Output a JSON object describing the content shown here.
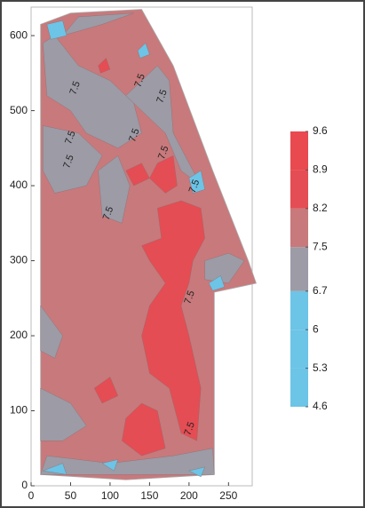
{
  "chart_data": {
    "type": "contour",
    "xlim": [
      0,
      280
    ],
    "ylim": [
      0,
      638
    ],
    "xticks": [
      0,
      50,
      100,
      150,
      200,
      250
    ],
    "yticks": [
      0,
      100,
      200,
      300,
      400,
      500,
      600
    ],
    "levels": [
      4.6,
      5.3,
      6.0,
      6.7,
      7.5,
      8.2,
      8.9,
      9.6
    ],
    "colors": [
      "#6cc4e6",
      "#6cc4e6",
      "#6cc4e6",
      "#9c9ba6",
      "#c8797c",
      "#e44d53",
      "#e84a50"
    ],
    "base_level": 7.5,
    "domain": {
      "x": [
        12,
        12,
        50,
        140,
        180,
        230,
        275,
        285,
        232,
        232,
        120
      ],
      "y": [
        15,
        615,
        630,
        635,
        560,
        420,
        300,
        270,
        258,
        15,
        8
      ]
    },
    "regions": [
      {
        "value": 6.7,
        "x": [
          30,
          60,
          100,
          130,
          140,
          110,
          70,
          50,
          20,
          15
        ],
        "y": [
          600,
          560,
          540,
          510,
          470,
          450,
          470,
          500,
          520,
          590
        ]
      },
      {
        "value": 6.7,
        "x": [
          15,
          60,
          90,
          70,
          30,
          15
        ],
        "y": [
          480,
          470,
          440,
          400,
          390,
          420
        ]
      },
      {
        "value": 6.7,
        "x": [
          120,
          160,
          175,
          180,
          200,
          215,
          190,
          170,
          140
        ],
        "y": [
          520,
          560,
          540,
          470,
          430,
          400,
          420,
          470,
          500
        ]
      },
      {
        "value": 6.7,
        "x": [
          85,
          110,
          125,
          115,
          90
        ],
        "y": [
          420,
          440,
          400,
          350,
          360
        ]
      },
      {
        "value": 6.7,
        "x": [
          40,
          90,
          130,
          60
        ],
        "y": [
          600,
          615,
          630,
          625
        ]
      },
      {
        "value": 6.7,
        "x": [
          12,
          50,
          70,
          40,
          12
        ],
        "y": [
          130,
          110,
          80,
          60,
          60
        ]
      },
      {
        "value": 6.7,
        "x": [
          12,
          40,
          30,
          12
        ],
        "y": [
          240,
          200,
          170,
          180
        ]
      },
      {
        "value": 6.7,
        "x": [
          20,
          100,
          180,
          230,
          232,
          12
        ],
        "y": [
          40,
          30,
          40,
          50,
          15,
          15
        ]
      },
      {
        "value": 6.7,
        "x": [
          220,
          250,
          270,
          250,
          220
        ],
        "y": [
          300,
          310,
          300,
          270,
          275
        ]
      },
      {
        "value": 8.2,
        "x": [
          160,
          190,
          215,
          220,
          205,
          200,
          190,
          200,
          215,
          210,
          190,
          175,
          150,
          140,
          150,
          170,
          150,
          140,
          165
        ],
        "y": [
          370,
          380,
          370,
          330,
          300,
          270,
          240,
          200,
          130,
          60,
          70,
          130,
          150,
          200,
          240,
          270,
          300,
          320,
          330
        ]
      },
      {
        "value": 8.2,
        "x": [
          120,
          140,
          150,
          130
        ],
        "y": [
          420,
          430,
          410,
          400
        ]
      },
      {
        "value": 8.2,
        "x": [
          160,
          180,
          185,
          170,
          150
        ],
        "y": [
          430,
          440,
          400,
          390,
          410
        ]
      },
      {
        "value": 8.2,
        "x": [
          120,
          140,
          160,
          170,
          140,
          115
        ],
        "y": [
          90,
          110,
          100,
          50,
          40,
          60
        ]
      },
      {
        "value": 8.2,
        "x": [
          80,
          100,
          110,
          90
        ],
        "y": [
          130,
          145,
          120,
          110
        ]
      },
      {
        "value": 8.2,
        "x": [
          85,
          95,
          100,
          88
        ],
        "y": [
          560,
          570,
          555,
          550
        ]
      },
      {
        "value": 6.0,
        "x": [
          20,
          40,
          45,
          25
        ],
        "y": [
          615,
          620,
          600,
          595
        ]
      },
      {
        "value": 6.0,
        "x": [
          135,
          145,
          150,
          138
        ],
        "y": [
          580,
          590,
          575,
          570
        ]
      },
      {
        "value": 6.0,
        "x": [
          200,
          215,
          220,
          205
        ],
        "y": [
          410,
          420,
          395,
          390
        ]
      },
      {
        "value": 6.0,
        "x": [
          225,
          240,
          245,
          230
        ],
        "y": [
          270,
          280,
          265,
          260
        ]
      },
      {
        "value": 6.0,
        "x": [
          15,
          40,
          45
        ],
        "y": [
          20,
          30,
          15
        ]
      },
      {
        "value": 6.0,
        "x": [
          90,
          110,
          105
        ],
        "y": [
          30,
          35,
          20
        ]
      },
      {
        "value": 6.0,
        "x": [
          200,
          220,
          215
        ],
        "y": [
          20,
          25,
          12
        ]
      }
    ],
    "contour_labels": [
      {
        "x": 56,
        "y": 530,
        "value": 7.5
      },
      {
        "x": 138,
        "y": 540,
        "value": 7.5
      },
      {
        "x": 166,
        "y": 519,
        "value": 7.5
      },
      {
        "x": 131,
        "y": 467,
        "value": 7.5
      },
      {
        "x": 50,
        "y": 464,
        "value": 7.5
      },
      {
        "x": 48,
        "y": 432,
        "value": 7.5
      },
      {
        "x": 168,
        "y": 444,
        "value": 7.5
      },
      {
        "x": 207,
        "y": 399,
        "value": 7.5
      },
      {
        "x": 98,
        "y": 363,
        "value": 7.5
      },
      {
        "x": 201,
        "y": 251,
        "value": 7.5
      },
      {
        "x": 201,
        "y": 76,
        "value": 7.5
      }
    ]
  }
}
